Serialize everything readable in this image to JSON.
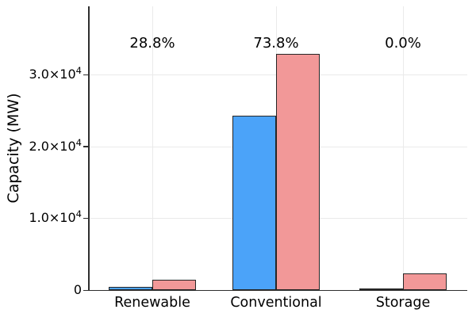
{
  "chart_data": {
    "type": "bar",
    "title": "",
    "xlabel": "",
    "ylabel": "Capacity (MW)",
    "categories": [
      "Renewable",
      "Conventional",
      "Storage"
    ],
    "series": [
      {
        "name": "blue-series",
        "color": "#4BA3F9",
        "values": [
          415,
          24250,
          0
        ]
      },
      {
        "name": "pink-series",
        "color": "#F29898",
        "values": [
          1440,
          32850,
          2300
        ]
      }
    ],
    "annotations": [
      {
        "text": "28.8%",
        "category": "Renewable"
      },
      {
        "text": "73.8%",
        "category": "Conventional"
      },
      {
        "text": "0.0%",
        "category": "Storage"
      }
    ],
    "y_ticks": [
      {
        "value": 0,
        "mantissa": "0",
        "exp": ""
      },
      {
        "value": 10000,
        "mantissa": "1.0×10",
        "exp": "4"
      },
      {
        "value": 20000,
        "mantissa": "2.0×10",
        "exp": "4"
      },
      {
        "value": 30000,
        "mantissa": "3.0×10",
        "exp": "4"
      }
    ],
    "ylim": [
      0,
      39500
    ],
    "grid": true,
    "legend": "none",
    "colors": {
      "bar_outline": "#262626",
      "gridline": "#EAEAEA",
      "axis": "#2E2E2E",
      "text": "#000000",
      "background": "#FFFFFF"
    }
  }
}
